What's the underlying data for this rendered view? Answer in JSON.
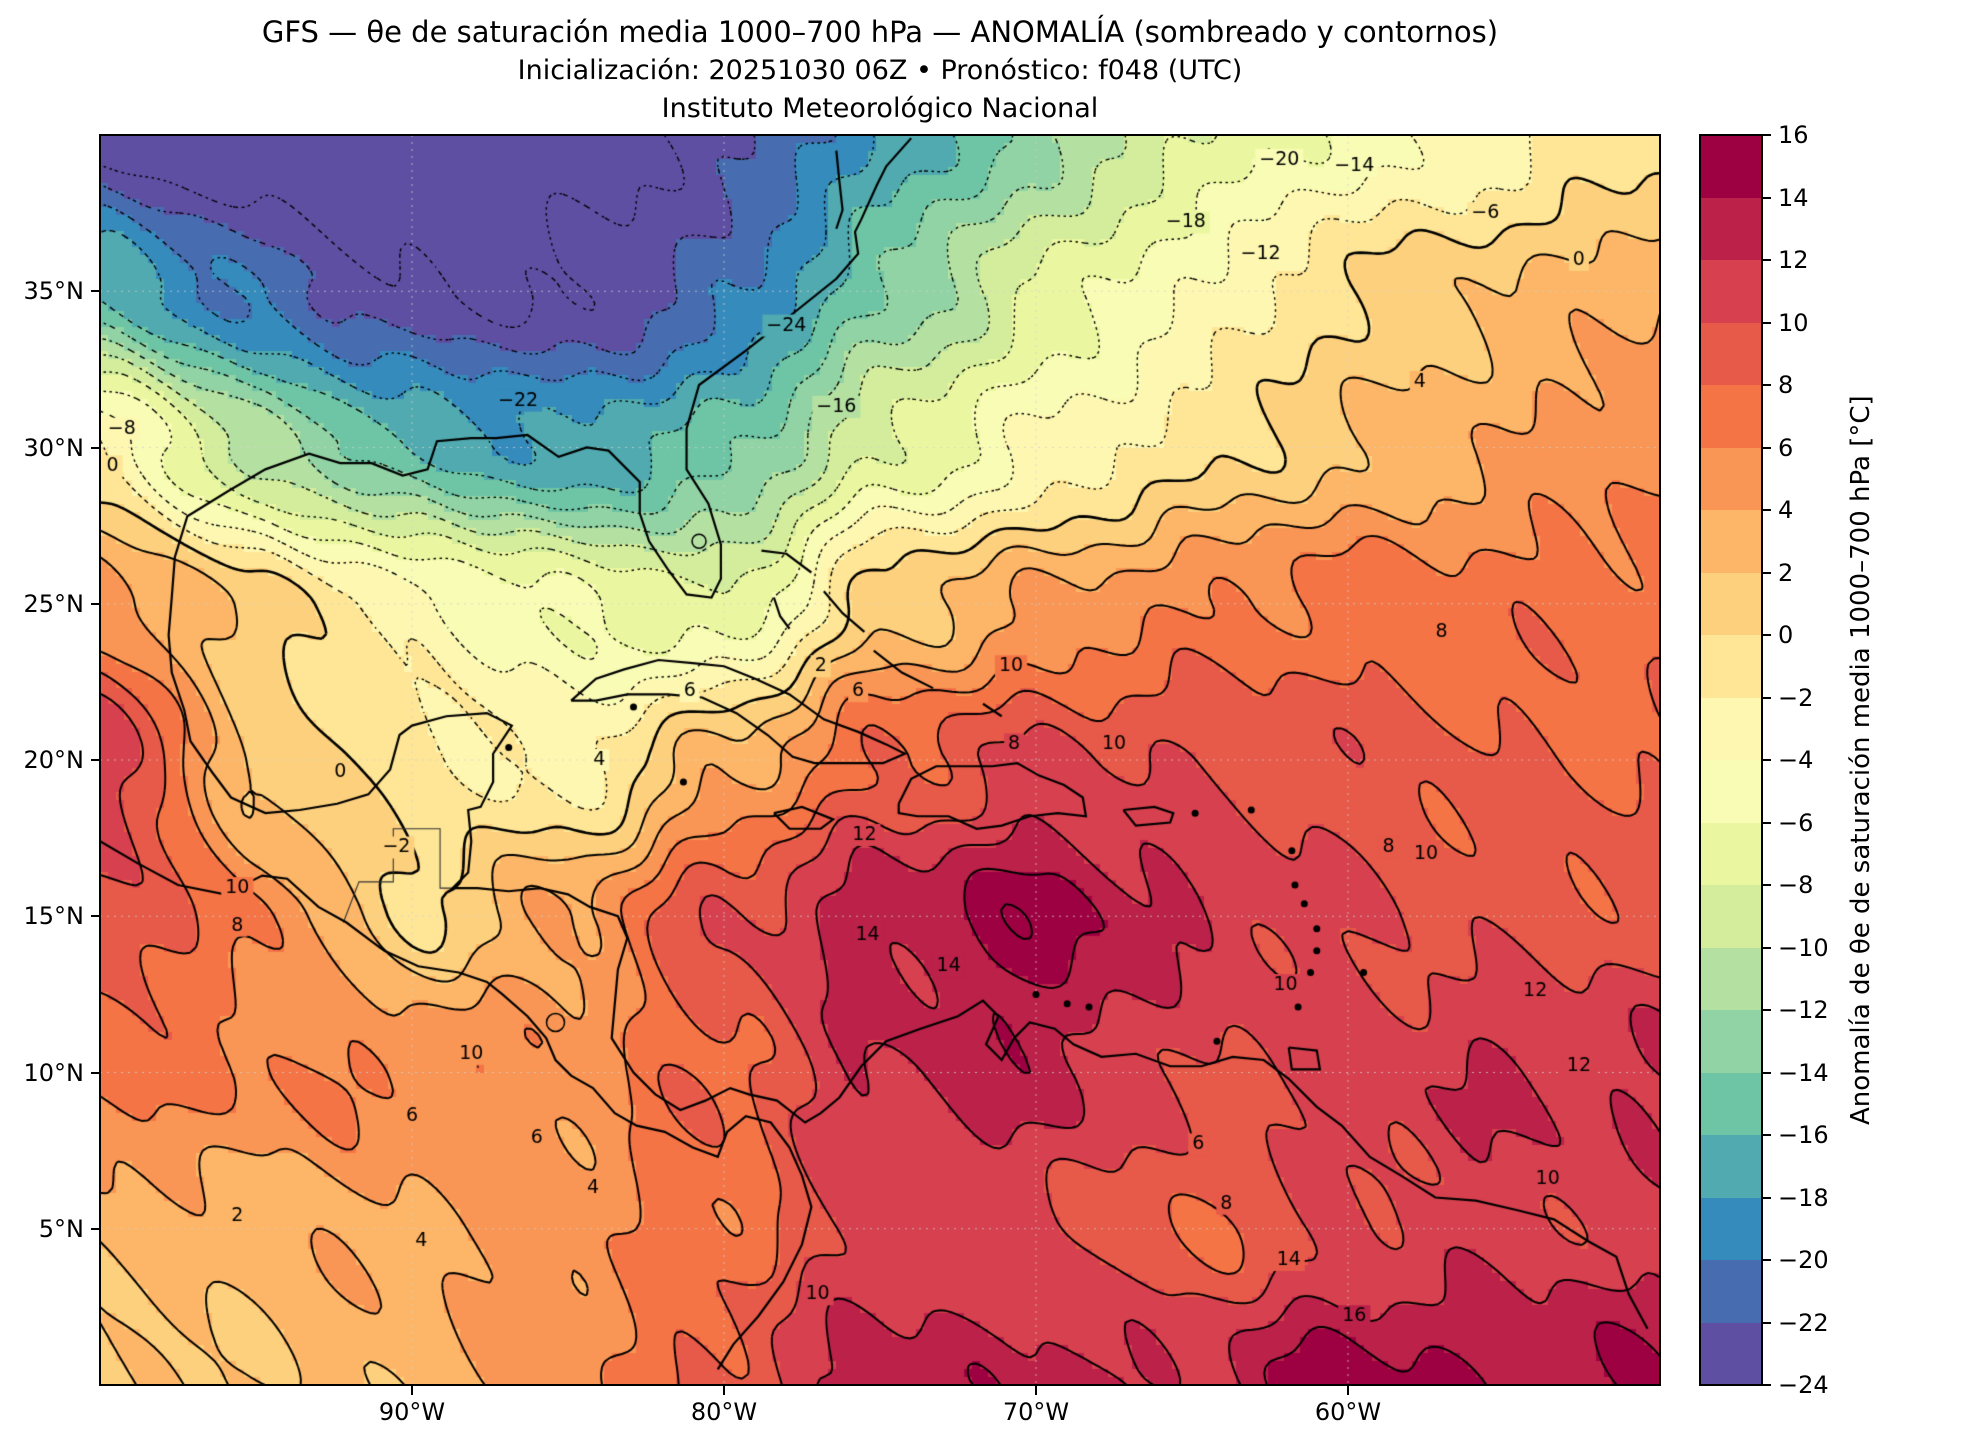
{
  "header": {
    "title_line1": "GFS — θe de saturación media 1000–700 hPa — ANOMALÍA (sombreado y contornos)",
    "title_line2": "Inicialización: 20251030 06Z  •  Pronóstico: f048 (UTC)",
    "title_line3": "Instituto Meteorológico Nacional"
  },
  "axes": {
    "lon_range": [
      -100,
      -50
    ],
    "lat_range": [
      0,
      40
    ],
    "x_ticks": [
      {
        "label": "90°W",
        "lon": -90
      },
      {
        "label": "80°W",
        "lon": -80
      },
      {
        "label": "70°W",
        "lon": -70
      },
      {
        "label": "60°W",
        "lon": -60
      }
    ],
    "y_ticks": [
      {
        "label": "35°N",
        "lat": 35
      },
      {
        "label": "30°N",
        "lat": 30
      },
      {
        "label": "25°N",
        "lat": 25
      },
      {
        "label": "20°N",
        "lat": 20
      },
      {
        "label": "15°N",
        "lat": 15
      },
      {
        "label": "10°N",
        "lat": 10
      },
      {
        "label": "5°N",
        "lat": 5
      }
    ],
    "grid_lons": [
      -90,
      -80,
      -70,
      -60
    ],
    "grid_lats": [
      5,
      10,
      15,
      20,
      25,
      30,
      35
    ]
  },
  "colorbar": {
    "label": "Anomalía de θe de saturación media 1000–700 hPa [°C]",
    "min": -24,
    "max": 16,
    "step": 2,
    "tick_values": [
      16,
      14,
      12,
      10,
      8,
      6,
      4,
      2,
      0,
      -2,
      -4,
      -6,
      -8,
      -10,
      -12,
      -14,
      -16,
      -18,
      -20,
      -22,
      -24
    ],
    "bin_colors": [
      "#5e4fa2",
      "#476db0",
      "#358bbc",
      "#50aaaf",
      "#6ec5a5",
      "#91d3a4",
      "#b4e1a2",
      "#d3ed9c",
      "#ebf7a0",
      "#f8fcb5",
      "#fef7b1",
      "#fee696",
      "#fdd07d",
      "#fdb667",
      "#f99655",
      "#f57446",
      "#e75948",
      "#d7404e",
      "#bb2149",
      "#9e0142"
    ]
  },
  "chart_data": {
    "type": "heatmap",
    "title": "GFS — θe de saturación media 1000–700 hPa — ANOMALÍA (sombreado y contornos)",
    "model": "GFS",
    "init": "20251030 06Z",
    "forecast_hour": "f048 (UTC)",
    "field": "Anomalía de θe de saturación media 1000–700 hPa",
    "units": "°C",
    "shading": "filled contours every 2 °C, range -24 to 16",
    "contour_interval_c": 2,
    "negative_contours": "dotted",
    "positive_contours": "solid",
    "grid_lons": [
      -100,
      -95,
      -90,
      -85,
      -80,
      -75,
      -70,
      -65,
      -60,
      -55,
      -50
    ],
    "grid_lats": [
      40,
      35,
      30,
      25,
      20,
      15,
      10,
      5,
      0
    ],
    "values_c": [
      [
        -25,
        -26,
        -26,
        -25,
        -23,
        -18,
        -13,
        -8,
        -5,
        -3,
        -1
      ],
      [
        -16,
        -21,
        -24,
        -24,
        -21,
        -14,
        -8,
        -4,
        0,
        2,
        4
      ],
      [
        -2,
        -11,
        -16,
        -18,
        -15,
        -8,
        -4,
        -1,
        2,
        4,
        6
      ],
      [
        5,
        1,
        -3,
        -6,
        -8,
        1,
        4,
        6,
        7,
        7,
        7
      ],
      [
        12,
        1,
        -1,
        -3,
        3,
        8,
        10,
        10,
        9,
        8,
        8
      ],
      [
        10,
        6,
        0,
        4,
        10,
        13,
        15,
        12,
        10,
        9,
        9
      ],
      [
        7,
        6,
        6,
        5,
        8,
        12,
        13,
        10,
        11,
        12,
        12
      ],
      [
        3,
        3,
        4,
        5,
        7,
        11,
        10,
        8,
        10,
        11,
        11
      ],
      [
        1,
        2,
        3,
        5,
        9,
        13,
        13,
        12,
        15,
        14,
        14
      ]
    ],
    "contour_labels": [
      {
        "v": -24,
        "lon": -78.0,
        "lat": 33.9
      },
      {
        "v": -22,
        "lon": -86.6,
        "lat": 31.5
      },
      {
        "v": -16,
        "lon": -76.4,
        "lat": 31.3
      },
      {
        "v": -20,
        "lon": -62.2,
        "lat": 39.2
      },
      {
        "v": -18,
        "lon": -65.2,
        "lat": 37.2
      },
      {
        "v": -14,
        "lon": -59.8,
        "lat": 39.0
      },
      {
        "v": -12,
        "lon": -62.8,
        "lat": 36.2
      },
      {
        "v": -6,
        "lon": -55.6,
        "lat": 37.5
      },
      {
        "v": 0,
        "lon": -52.6,
        "lat": 36.0
      },
      {
        "v": 4,
        "lon": -57.7,
        "lat": 32.1
      },
      {
        "v": -8,
        "lon": -99.3,
        "lat": 30.6
      },
      {
        "v": 0,
        "lon": -99.6,
        "lat": 29.4
      },
      {
        "v": 8,
        "lon": -57.0,
        "lat": 24.1
      },
      {
        "v": 0,
        "lon": -92.3,
        "lat": 19.6
      },
      {
        "v": -2,
        "lon": -90.5,
        "lat": 17.2
      },
      {
        "v": 4,
        "lon": -84.0,
        "lat": 20.0
      },
      {
        "v": 2,
        "lon": -76.9,
        "lat": 23.0
      },
      {
        "v": 6,
        "lon": -75.7,
        "lat": 22.2
      },
      {
        "v": 6,
        "lon": -81.1,
        "lat": 22.2
      },
      {
        "v": 10,
        "lon": -70.8,
        "lat": 23.0
      },
      {
        "v": 8,
        "lon": -70.7,
        "lat": 20.5
      },
      {
        "v": 10,
        "lon": -67.5,
        "lat": 20.5
      },
      {
        "v": 12,
        "lon": -75.5,
        "lat": 17.6
      },
      {
        "v": 14,
        "lon": -75.4,
        "lat": 14.4
      },
      {
        "v": 14,
        "lon": -72.8,
        "lat": 13.4
      },
      {
        "v": 8,
        "lon": -58.7,
        "lat": 17.2
      },
      {
        "v": 10,
        "lon": -57.5,
        "lat": 17.0
      },
      {
        "v": 10,
        "lon": -95.6,
        "lat": 15.9
      },
      {
        "v": 8,
        "lon": -95.6,
        "lat": 14.7
      },
      {
        "v": 12,
        "lon": -54.0,
        "lat": 12.6
      },
      {
        "v": 12,
        "lon": -52.6,
        "lat": 10.2
      },
      {
        "v": 10,
        "lon": -88.1,
        "lat": 10.6
      },
      {
        "v": 10,
        "lon": -62.0,
        "lat": 12.8
      },
      {
        "v": 6,
        "lon": -90.0,
        "lat": 8.6
      },
      {
        "v": 6,
        "lon": -64.8,
        "lat": 7.7
      },
      {
        "v": 8,
        "lon": -63.9,
        "lat": 5.8
      },
      {
        "v": 4,
        "lon": -84.2,
        "lat": 6.3
      },
      {
        "v": 2,
        "lon": -95.6,
        "lat": 5.4
      },
      {
        "v": 4,
        "lon": -89.7,
        "lat": 4.6
      },
      {
        "v": 10,
        "lon": -53.6,
        "lat": 6.6
      },
      {
        "v": 14,
        "lon": -61.9,
        "lat": 4.0
      },
      {
        "v": 16,
        "lon": -59.8,
        "lat": 2.2
      },
      {
        "v": 10,
        "lon": -77.0,
        "lat": 2.9
      },
      {
        "v": 6,
        "lon": -86.0,
        "lat": 7.9
      }
    ]
  },
  "map_geometry": {
    "coastlines": [
      [
        -74.0,
        39.9,
        -74.8,
        39.0,
        -75.1,
        38.4,
        -75.6,
        37.3,
        -75.8,
        36.9,
        -75.7,
        36.2,
        -76.4,
        35.4,
        -77.9,
        34.2,
        -79.3,
        33.1,
        -80.8,
        32.0,
        -81.2,
        30.6,
        -81.2,
        29.3,
        -80.5,
        28.2,
        -80.1,
        26.9,
        -80.1,
        25.8,
        -80.4,
        25.2,
        -81.2,
        25.3,
        -81.8,
        26.1,
        -82.4,
        27.0,
        -82.7,
        27.9,
        -82.7,
        28.9,
        -83.7,
        29.9,
        -84.4,
        30.0,
        -85.3,
        29.7,
        -86.3,
        30.4,
        -87.3,
        30.3,
        -88.1,
        30.3,
        -89.2,
        30.2,
        -89.5,
        29.3,
        -90.3,
        29.1,
        -91.3,
        29.5,
        -92.3,
        29.5,
        -93.3,
        29.8,
        -94.7,
        29.3,
        -95.9,
        28.6,
        -97.2,
        27.8,
        -97.6,
        26.5,
        -97.7,
        25.2,
        -97.8,
        24.0,
        -97.7,
        22.8,
        -97.3,
        21.6,
        -97.1,
        20.6,
        -96.4,
        19.6,
        -95.8,
        18.8,
        -94.7,
        18.3,
        -93.6,
        18.4,
        -92.4,
        18.6,
        -91.4,
        18.9,
        -90.7,
        19.7,
        -90.4,
        20.8,
        -90.0,
        21.1,
        -88.9,
        21.4,
        -87.6,
        21.5,
        -86.8,
        21.1,
        -87.4,
        20.2,
        -87.4,
        19.3,
        -87.8,
        18.5,
        -88.2,
        18.4,
        -88.1,
        17.4,
        -88.2,
        16.4,
        -88.7,
        15.9,
        -87.9,
        15.9,
        -86.9,
        15.8,
        -85.9,
        15.9,
        -85.0,
        15.7,
        -84.3,
        15.3,
        -83.4,
        15.0,
        -83.1,
        14.3,
        -83.4,
        13.3,
        -83.5,
        12.2,
        -83.6,
        11.1,
        -82.9,
        10.0,
        -82.2,
        9.3,
        -81.4,
        8.8,
        -80.6,
        9.1,
        -79.8,
        9.5,
        -79.2,
        9.3,
        -78.3,
        9.1,
        -77.4,
        8.4,
        -76.9,
        8.7,
        -76.3,
        9.2,
        -75.6,
        10.2,
        -74.8,
        11.0,
        -73.7,
        11.4,
        -72.5,
        11.8,
        -71.7,
        12.3,
        -71.2,
        11.8,
        -71.6,
        10.9,
        -71.1,
        10.4,
        -70.7,
        11.1,
        -70.2,
        11.6,
        -69.4,
        11.4,
        -68.8,
        10.9,
        -67.9,
        10.5,
        -66.8,
        10.6,
        -65.7,
        10.2,
        -64.7,
        10.2,
        -63.7,
        10.5,
        -62.7,
        10.4,
        -61.9,
        9.8,
        -61.0,
        8.9,
        -60.2,
        8.3,
        -59.3,
        7.3,
        -58.3,
        6.7,
        -57.2,
        6.0,
        -55.9,
        5.9,
        -54.6,
        5.6,
        -53.4,
        5.3,
        -52.3,
        4.6,
        -51.4,
        4.1,
        -51.0,
        2.9,
        -50.4,
        1.8
      ],
      [
        -76.4,
        39.5,
        -76.3,
        38.5,
        -76.2,
        37.6,
        -76.4,
        37.0
      ],
      [
        -100.0,
        17.4,
        -98.8,
        16.7,
        -97.5,
        16.0,
        -96.0,
        15.7,
        -94.8,
        16.3,
        -94.0,
        16.2,
        -93.0,
        15.3,
        -92.1,
        14.8,
        -90.9,
        13.9,
        -89.8,
        13.4,
        -88.5,
        13.2,
        -87.6,
        12.9,
        -87.1,
        12.5,
        -86.3,
        11.8,
        -85.7,
        11.1,
        -85.4,
        10.4,
        -84.9,
        9.9,
        -84.2,
        9.5,
        -83.5,
        8.7,
        -82.8,
        8.3,
        -81.9,
        8.1,
        -81.0,
        7.6,
        -80.2,
        7.3,
        -79.9,
        8.1,
        -79.3,
        8.6,
        -78.5,
        8.4,
        -77.9,
        7.6,
        -77.5,
        6.7,
        -77.2,
        5.7,
        -77.5,
        4.5,
        -78.1,
        3.3,
        -78.9,
        2.2,
        -79.7,
        1.3,
        -80.2,
        0.5
      ],
      [
        -84.9,
        21.9,
        -84.1,
        22.6,
        -83.2,
        22.9,
        -82.1,
        23.2,
        -81.0,
        23.1,
        -80.0,
        23.0,
        -79.0,
        22.6,
        -77.9,
        22.1,
        -76.8,
        21.3,
        -75.7,
        20.9,
        -74.8,
        20.5,
        -74.2,
        20.2,
        -74.9,
        19.9,
        -75.9,
        19.9,
        -77.1,
        19.9,
        -77.8,
        20.1,
        -78.6,
        20.8,
        -79.6,
        21.5,
        -80.7,
        22.0,
        -81.8,
        22.1,
        -83.1,
        22.1,
        -84.1,
        21.9,
        -84.9,
        21.9
      ],
      [
        -74.4,
        18.6,
        -74.0,
        19.4,
        -73.2,
        19.8,
        -72.3,
        19.8,
        -71.4,
        19.8,
        -70.6,
        19.9,
        -69.9,
        19.5,
        -69.1,
        19.2,
        -68.5,
        18.8,
        -68.4,
        18.2,
        -69.3,
        18.3,
        -70.2,
        18.2,
        -71.1,
        17.9,
        -71.9,
        17.8,
        -72.8,
        18.2,
        -73.8,
        18.2,
        -74.4,
        18.3,
        -74.4,
        18.6
      ],
      [
        -78.4,
        18.3,
        -77.5,
        18.5,
        -76.5,
        18.1,
        -76.9,
        17.8,
        -77.9,
        17.8,
        -78.4,
        18.3
      ],
      [
        -67.2,
        18.4,
        -66.2,
        18.5,
        -65.6,
        18.3,
        -65.7,
        18.0,
        -66.8,
        17.9,
        -67.2,
        18.4
      ],
      [
        -61.9,
        10.8,
        -61.0,
        10.7,
        -60.9,
        10.1,
        -61.8,
        10.1,
        -61.9,
        10.8
      ],
      [
        -78.8,
        26.7,
        -78.0,
        26.6,
        -77.2,
        26.0
      ],
      [
        -78.4,
        25.2,
        -78.2,
        24.6,
        -77.9,
        24.2
      ],
      [
        -76.8,
        25.4,
        -76.2,
        24.7,
        -75.5,
        24.1
      ],
      [
        -75.2,
        23.5,
        -74.3,
        22.8,
        -73.3,
        22.3
      ],
      [
        -71.7,
        21.8,
        -71.1,
        21.4
      ]
    ],
    "borders": [
      [
        -92.2,
        14.8,
        -91.7,
        16.1,
        -90.6,
        16.1,
        -90.6,
        17.8,
        -89.1,
        17.8,
        -89.1,
        15.9,
        -88.7,
        15.9
      ]
    ],
    "islands": [
      [
        -86.9,
        20.4
      ],
      [
        -82.9,
        21.7
      ],
      [
        -81.3,
        19.3
      ],
      [
        -70.0,
        12.5
      ],
      [
        -69.0,
        12.2
      ],
      [
        -68.3,
        12.1
      ],
      [
        -64.2,
        11.0
      ],
      [
        -63.1,
        18.4
      ],
      [
        -64.9,
        18.3
      ],
      [
        -61.8,
        17.1
      ],
      [
        -61.7,
        16.0
      ],
      [
        -61.4,
        15.4
      ],
      [
        -61.0,
        14.6
      ],
      [
        -61.0,
        13.9
      ],
      [
        -61.2,
        13.2
      ],
      [
        -61.6,
        12.1
      ],
      [
        -59.5,
        13.2
      ]
    ],
    "lakes": [
      {
        "lon": -80.8,
        "lat": 27.0,
        "r": 7
      },
      {
        "lon": -85.4,
        "lat": 11.6,
        "r": 9
      }
    ]
  }
}
